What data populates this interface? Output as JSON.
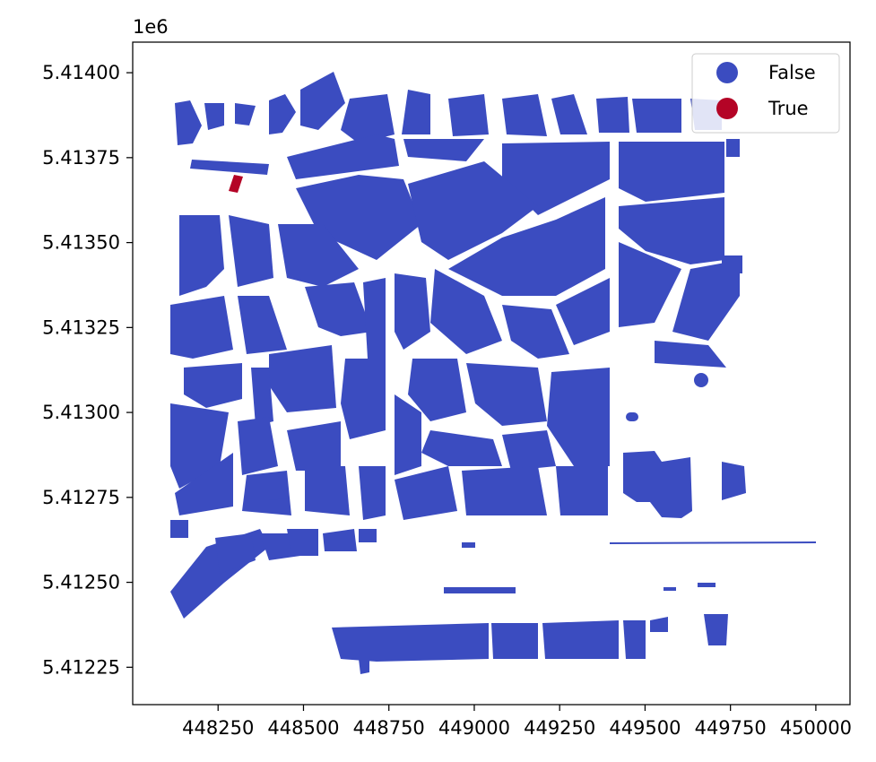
{
  "chart_data": {
    "type": "scatter",
    "title": "",
    "xlabel": "",
    "ylabel": "",
    "xlim": [
      448000,
      450100
    ],
    "ylim": [
      5412140,
      5414090
    ],
    "y_offset_label": "1e6",
    "x_ticks": [
      448250,
      448500,
      448750,
      449000,
      449250,
      449500,
      449750,
      450000
    ],
    "x_tick_labels": [
      "448250",
      "448500",
      "448750",
      "449000",
      "449250",
      "449500",
      "449750",
      "450000"
    ],
    "y_ticks": [
      5412250,
      5412500,
      5412750,
      5413000,
      5413250,
      5413500,
      5413750,
      5414000
    ],
    "y_tick_labels": [
      "5.41225",
      "5.41250",
      "5.41275",
      "5.41300",
      "5.41325",
      "5.41350",
      "5.41375",
      "5.41400"
    ],
    "grid": false,
    "legend_position": "top-right",
    "series": [
      {
        "name": "False",
        "color": "#3b4cc0"
      },
      {
        "name": "True",
        "color": "#b40426"
      }
    ],
    "highlighted_feature": {
      "category": "True",
      "x": 448310,
      "y": 5413655
    }
  }
}
